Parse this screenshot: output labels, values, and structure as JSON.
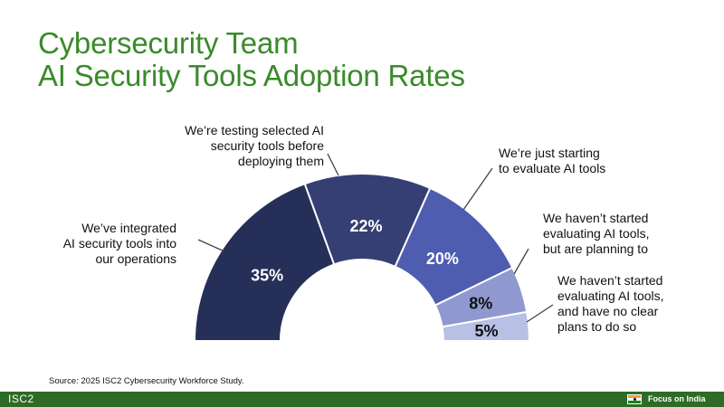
{
  "title": {
    "line1": "Cybersecurity Team",
    "line2": "AI Security Tools Adoption Rates"
  },
  "chart_data": {
    "type": "pie",
    "subtype": "semi-donut",
    "slices": [
      {
        "label": "We’ve integrated AI security tools into our operations",
        "value": 35,
        "display": "35%",
        "color": "#252f58",
        "label_color": "#ffffff"
      },
      {
        "label": "We’re testing selected AI security tools before deploying them",
        "value": 22,
        "display": "22%",
        "color": "#353f74",
        "label_color": "#ffffff"
      },
      {
        "label": "We’re just starting to evaluate AI tools",
        "value": 20,
        "display": "20%",
        "color": "#4f5db0",
        "label_color": "#ffffff"
      },
      {
        "label": "We haven’t started evaluating AI tools, but are planning to",
        "value": 8,
        "display": "8%",
        "color": "#8f99d0",
        "label_color": "#111111"
      },
      {
        "label": "We haven’t started evaluating AI tools, and have no clear plans to do so",
        "value": 5,
        "display": "5%",
        "color": "#b8c0e6",
        "label_color": "#111111"
      }
    ]
  },
  "labels": [
    {
      "lines": [
        "We’ve integrated",
        "AI security tools into",
        "our operations"
      ]
    },
    {
      "lines": [
        "We’re testing selected AI",
        "security tools before",
        "deploying them"
      ]
    },
    {
      "lines": [
        "We’re just starting",
        "to evaluate AI tools"
      ]
    },
    {
      "lines": [
        "We haven’t started",
        "evaluating AI tools,",
        "but are planning to"
      ]
    },
    {
      "lines": [
        "We haven’t started",
        "evaluating AI tools,",
        "and have no clear",
        "plans to do so"
      ]
    }
  ],
  "source": "Source: 2025 ISC2 Cybersecurity Workforce Study.",
  "footer": {
    "logo_text": "ISC2",
    "region_text": "Focus on India"
  },
  "colors": {
    "title": "#3a8a2b",
    "footer_bar": "#2e6b26",
    "leader_line": "#444444"
  }
}
